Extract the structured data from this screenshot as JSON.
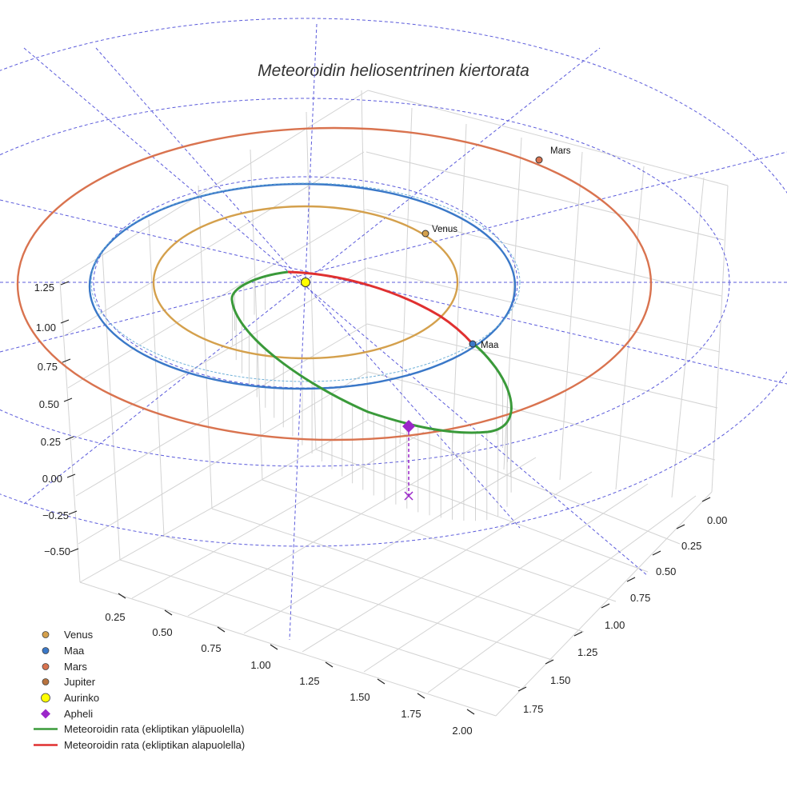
{
  "chart_data": {
    "type": "line",
    "projection": "3d",
    "title": "Meteoroidin heliosentrinen kiertorata",
    "x_ticks": [
      "0.25",
      "0.50",
      "0.75",
      "1.00",
      "1.25",
      "1.50",
      "1.75",
      "2.00"
    ],
    "y_ticks": [
      "0.00",
      "0.25",
      "0.50",
      "0.75",
      "1.00",
      "1.25",
      "1.50",
      "1.75"
    ],
    "z_ticks": [
      "−0.50",
      "−0.25",
      "0.00",
      "0.25",
      "0.50",
      "0.75",
      "1.00",
      "1.25"
    ],
    "colors": {
      "venus": "#d4a04c",
      "earth": "#3a78c8",
      "mars": "#d9734f",
      "orbit_above": "#3a9a3a",
      "orbit_below": "#e03030",
      "aphelion": "#9b27c9",
      "sun": "#ffff00",
      "grid": "#cfcfcf",
      "reference": "#5b5bdb"
    },
    "planets": [
      {
        "name": "Venus",
        "label": "Venus",
        "orbit_radius_au": 0.72,
        "color": "#d4a04c"
      },
      {
        "name": "Maa",
        "label": "Maa",
        "orbit_radius_au": 1.0,
        "color": "#3a78c8"
      },
      {
        "name": "Mars",
        "label": "Mars",
        "orbit_radius_au": 1.52,
        "color": "#d9734f"
      }
    ],
    "meteoroid_orbit": {
      "perihelion_au": 0.05,
      "aphelion_au": 1.0,
      "segments": [
        "above ecliptic",
        "below ecliptic"
      ]
    },
    "legend": [
      {
        "label": "Venus",
        "symbol": "dot",
        "color": "#d4a04c"
      },
      {
        "label": "Maa",
        "symbol": "dot",
        "color": "#3a78c8"
      },
      {
        "label": "Mars",
        "symbol": "dot",
        "color": "#d9734f"
      },
      {
        "label": "Jupiter",
        "symbol": "dot",
        "color": "#b8733e"
      },
      {
        "label": "Aurinko",
        "symbol": "sun",
        "color": "#ffff00"
      },
      {
        "label": "Apheli",
        "symbol": "diamond",
        "color": "#9b27c9"
      },
      {
        "label": "Meteoroidin rata (ekliptikan yläpuolella)",
        "symbol": "line",
        "color": "#3a9a3a"
      },
      {
        "label": "Meteoroidin rata (ekliptikan alapuolella)",
        "symbol": "line",
        "color": "#e03030"
      }
    ]
  }
}
